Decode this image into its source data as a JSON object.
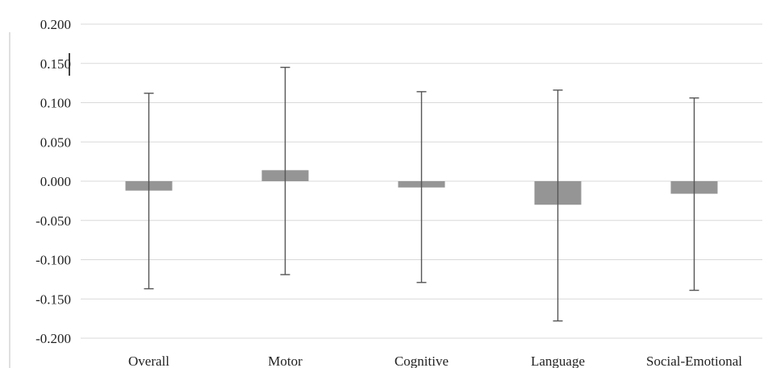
{
  "chart_data": {
    "type": "bar",
    "title": "",
    "xlabel": "",
    "ylabel": "",
    "categories": [
      "Overall",
      "Motor",
      "Cognitive",
      "Language",
      "Social-Emotional"
    ],
    "values": [
      -0.012,
      0.014,
      -0.008,
      -0.03,
      -0.016
    ],
    "error_bars": {
      "upper": [
        0.112,
        0.145,
        0.114,
        0.116,
        0.106
      ],
      "lower": [
        -0.137,
        -0.119,
        -0.129,
        -0.178,
        -0.139
      ]
    },
    "ylim": [
      -0.2,
      0.2
    ],
    "yticks": [
      "0.200",
      "0.150",
      "0.100",
      "0.050",
      "0.000",
      "-0.050",
      "-0.100",
      "-0.150",
      "-0.200"
    ],
    "ytick_values": [
      0.2,
      0.15,
      0.1,
      0.05,
      0.0,
      -0.05,
      -0.1,
      -0.15,
      -0.2
    ],
    "grid": true,
    "legend": "none",
    "colors": {
      "bar": "#959595",
      "error_bar": "#555555",
      "grid": "#d9d9d9",
      "axis": "#bfbfbf"
    }
  }
}
